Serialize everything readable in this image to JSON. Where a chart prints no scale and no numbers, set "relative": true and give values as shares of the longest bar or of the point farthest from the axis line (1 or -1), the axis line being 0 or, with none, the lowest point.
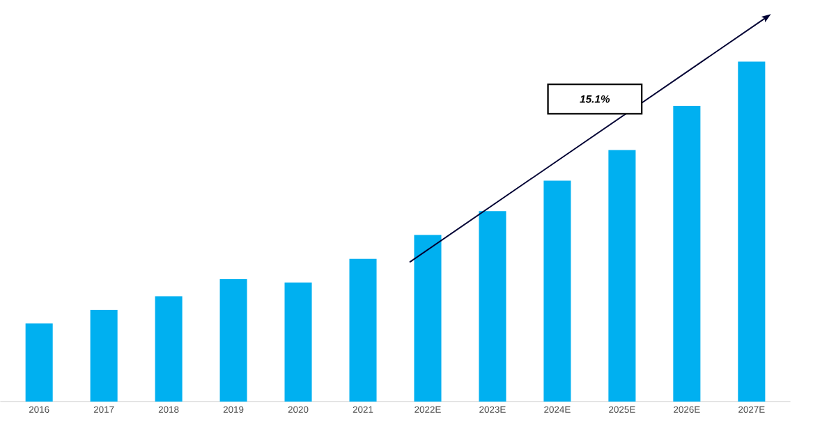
{
  "chart_data": {
    "type": "bar",
    "relative": true,
    "color": "#00b0f0",
    "categories": [
      "2016",
      "2017",
      "2018",
      "2019",
      "2020",
      "2021",
      "2022E",
      "2023E",
      "2024E",
      "2025E",
      "2026E",
      "2027E"
    ],
    "values": [
      0.23,
      0.27,
      0.31,
      0.36,
      0.35,
      0.42,
      0.49,
      0.56,
      0.65,
      0.74,
      0.87,
      1.0
    ],
    "annotations": [
      "15.1%"
    ]
  }
}
